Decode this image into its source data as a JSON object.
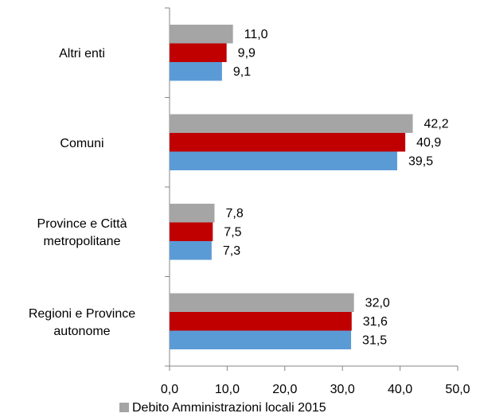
{
  "chart_data": {
    "type": "bar",
    "orientation": "horizontal",
    "categories": [
      "Altri enti",
      "Comuni",
      "Province e Città metropolitane",
      "Regioni e Province autonome"
    ],
    "series": [
      {
        "name": "Debito Amministrazioni locali 2015",
        "color": "#a5a5a5",
        "values": [
          11.0,
          42.2,
          7.8,
          32.0
        ],
        "value_labels": [
          "11,0",
          "42,2",
          "7,8",
          "32,0"
        ]
      },
      {
        "color": "#c00000",
        "values": [
          9.9,
          40.9,
          7.5,
          31.6
        ],
        "value_labels": [
          "9,9",
          "40,9",
          "7,5",
          "31,6"
        ]
      },
      {
        "color": "#5b9bd5",
        "values": [
          9.1,
          39.5,
          7.3,
          31.5
        ],
        "value_labels": [
          "9,1",
          "39,5",
          "7,3",
          "31,5"
        ]
      }
    ],
    "xlim": [
      0,
      50
    ],
    "xticks": [
      {
        "value": 0,
        "label": "0,0"
      },
      {
        "value": 10,
        "label": "10,0"
      },
      {
        "value": 20,
        "label": "20,0"
      },
      {
        "value": 30,
        "label": "30,0"
      },
      {
        "value": 40,
        "label": "40,0"
      },
      {
        "value": 50,
        "label": "50,0"
      }
    ],
    "legend": "bottom"
  }
}
